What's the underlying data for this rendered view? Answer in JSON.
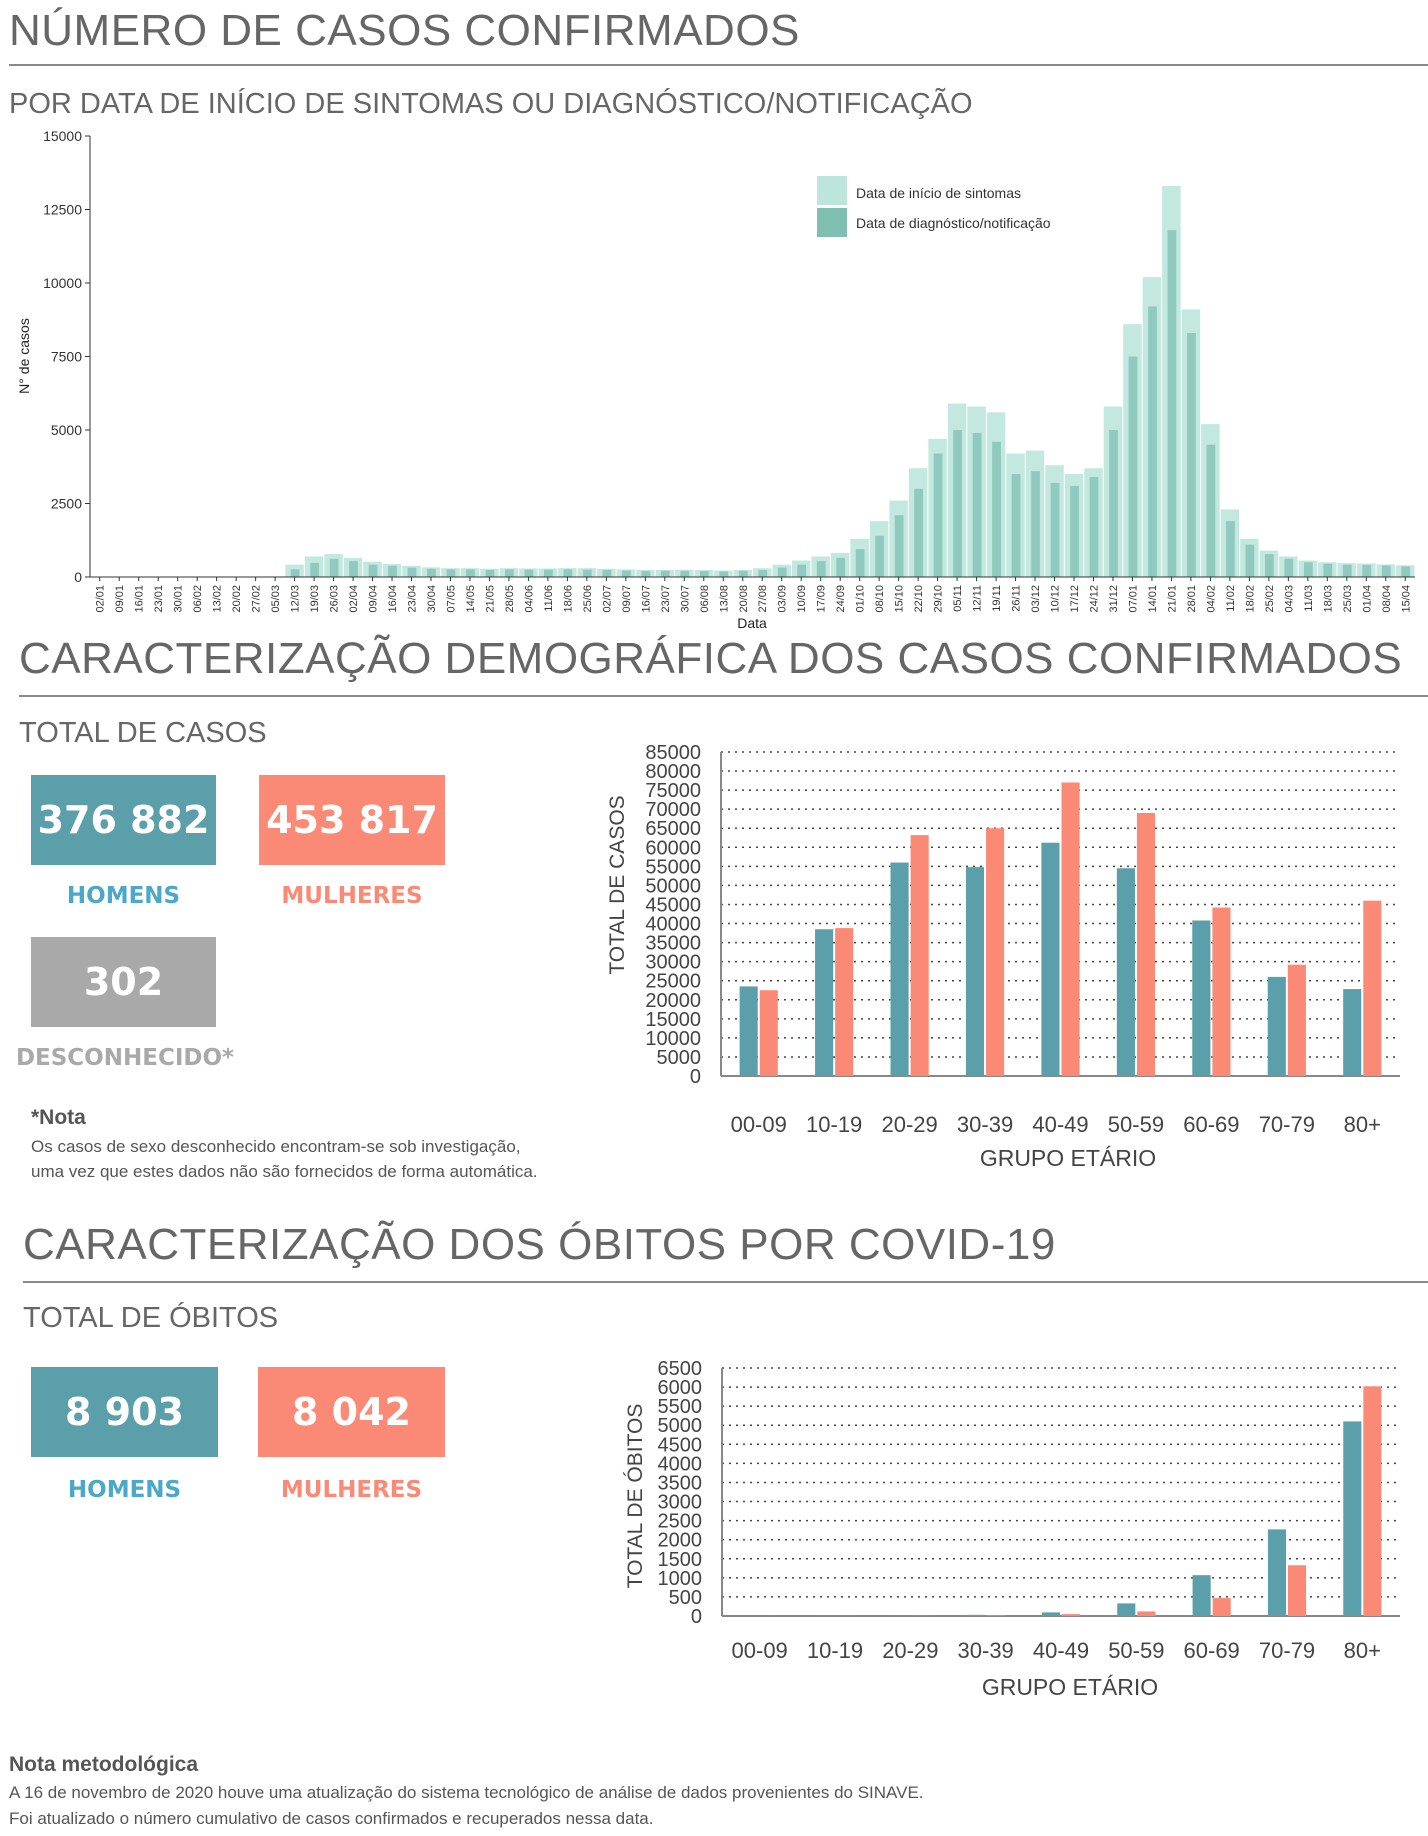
{
  "header": {
    "title": "NÚMERO DE CASOS CONFIRMADOS",
    "subtitle": "POR DATA DE INÍCIO DE SINTOMAS OU DIAGNÓSTICO/NOTIFICAÇÃO"
  },
  "demographics": {
    "title": "CARACTERIZAÇÃO DEMOGRÁFICA DOS CASOS CONFIRMADOS",
    "total_label": "TOTAL DE CASOS",
    "men_value": "376 882",
    "men_label": "HOMENS",
    "women_value": "453 817",
    "women_label": "MULHERES",
    "unknown_value": "302",
    "unknown_label": "DESCONHECIDO*",
    "note_title": "*Nota",
    "note_line1": "Os casos de sexo desconhecido encontram-se sob investigação,",
    "note_line2": "uma vez que estes dados não são fornecidos de forma automática."
  },
  "deaths": {
    "title": "CARACTERIZAÇÃO DOS ÓBITOS POR COVID-19",
    "total_label": "TOTAL DE ÓBITOS",
    "men_value": "8 903",
    "men_label": "HOMENS",
    "women_value": "8 042",
    "women_label": "MULHERES"
  },
  "footer": {
    "title": "Nota metodológica",
    "line1": "A 16 de novembro de 2020 houve uma atualização do sistema tecnológico de análise de dados provenientes do SINAVE.",
    "line2": "Foi atualizado o número cumulativo de casos confirmados e recuperados nessa data."
  },
  "colors": {
    "men": "#5a9faa",
    "women": "#fa8a76",
    "unknown": "#a9a9a9",
    "men_label": "#4aa8c8",
    "symptom_series": "#bde5dd",
    "diagnosis_series": "#7fbfb2"
  },
  "chart_data": [
    {
      "type": "bar",
      "title": "",
      "xlabel": "Data",
      "ylabel": "N° de casos",
      "ylim": [
        0,
        15000
      ],
      "yticks": [
        0,
        2500,
        5000,
        7500,
        10000,
        12500,
        15000
      ],
      "legend_position": "top-right",
      "x": [
        "02/01",
        "09/01",
        "16/01",
        "23/01",
        "30/01",
        "06/02",
        "13/02",
        "20/02",
        "27/02",
        "05/03",
        "12/03",
        "19/03",
        "26/03",
        "02/04",
        "09/04",
        "16/04",
        "23/04",
        "30/04",
        "07/05",
        "14/05",
        "21/05",
        "28/05",
        "04/06",
        "11/06",
        "18/06",
        "25/06",
        "02/07",
        "09/07",
        "16/07",
        "23/07",
        "30/07",
        "06/08",
        "13/08",
        "20/08",
        "27/08",
        "03/09",
        "10/09",
        "17/09",
        "24/09",
        "01/10",
        "08/10",
        "15/10",
        "22/10",
        "29/10",
        "05/11",
        "12/11",
        "19/11",
        "26/11",
        "03/12",
        "10/12",
        "17/12",
        "24/12",
        "31/12",
        "07/01",
        "14/01",
        "21/01",
        "28/01",
        "04/02",
        "11/02",
        "18/02",
        "25/02",
        "04/03",
        "11/03",
        "18/03",
        "25/03",
        "01/04",
        "08/04",
        "15/04"
      ],
      "series": [
        {
          "name": "Data de início de sintomas",
          "values": [
            0,
            0,
            0,
            0,
            0,
            0,
            0,
            0,
            0,
            20,
            420,
            700,
            780,
            650,
            520,
            440,
            380,
            330,
            300,
            300,
            280,
            300,
            290,
            290,
            300,
            300,
            280,
            260,
            240,
            240,
            250,
            240,
            220,
            240,
            300,
            420,
            560,
            700,
            820,
            1300,
            1900,
            2600,
            3700,
            4700,
            5900,
            5800,
            5600,
            4200,
            4300,
            3800,
            3500,
            3700,
            5800,
            8600,
            10200,
            13300,
            9100,
            5200,
            2300,
            1300,
            900,
            700,
            560,
            500,
            470,
            460,
            430,
            400
          ]
        },
        {
          "name": "Data de diagnóstico/notificação",
          "values": [
            0,
            0,
            0,
            0,
            0,
            0,
            0,
            0,
            0,
            10,
            260,
            480,
            620,
            540,
            420,
            380,
            320,
            280,
            260,
            260,
            240,
            260,
            250,
            250,
            260,
            250,
            240,
            220,
            200,
            210,
            210,
            200,
            190,
            210,
            240,
            320,
            420,
            540,
            650,
            950,
            1400,
            2100,
            3000,
            4200,
            5000,
            4900,
            4600,
            3500,
            3600,
            3200,
            3100,
            3400,
            5000,
            7500,
            9200,
            11800,
            8300,
            4500,
            1900,
            1100,
            780,
            620,
            500,
            450,
            420,
            410,
            390,
            360
          ]
        }
      ]
    },
    {
      "type": "bar",
      "title": "",
      "xlabel": "GRUPO ETÁRIO",
      "ylabel": "TOTAL DE CASOS",
      "ylim": [
        0,
        85000
      ],
      "yticks": [
        0,
        5000,
        10000,
        15000,
        20000,
        25000,
        30000,
        35000,
        40000,
        45000,
        50000,
        55000,
        60000,
        65000,
        70000,
        75000,
        80000,
        85000
      ],
      "grid": true,
      "categories": [
        "00-09",
        "10-19",
        "20-29",
        "30-39",
        "40-49",
        "50-59",
        "60-69",
        "70-79",
        "80+"
      ],
      "series": [
        {
          "name": "HOMENS",
          "values": [
            23500,
            38500,
            56000,
            54800,
            61200,
            54500,
            40800,
            26000,
            22800
          ]
        },
        {
          "name": "MULHERES",
          "values": [
            22500,
            38800,
            63200,
            65000,
            77000,
            69000,
            44200,
            29200,
            46000
          ]
        }
      ]
    },
    {
      "type": "bar",
      "title": "",
      "xlabel": "GRUPO ETÁRIO",
      "ylabel": "TOTAL DE ÓBITOS",
      "ylim": [
        0,
        6500
      ],
      "yticks": [
        0,
        500,
        1000,
        1500,
        2000,
        2500,
        3000,
        3500,
        4000,
        4500,
        5000,
        5500,
        6000,
        6500
      ],
      "grid": true,
      "categories": [
        "00-09",
        "10-19",
        "20-29",
        "30-39",
        "40-49",
        "50-59",
        "60-69",
        "70-79",
        "80+"
      ],
      "series": [
        {
          "name": "HOMENS",
          "values": [
            2,
            4,
            12,
            30,
            95,
            330,
            1070,
            2270,
            5100
          ]
        },
        {
          "name": "MULHERES",
          "values": [
            1,
            2,
            6,
            15,
            50,
            120,
            470,
            1330,
            6020
          ]
        }
      ]
    }
  ]
}
